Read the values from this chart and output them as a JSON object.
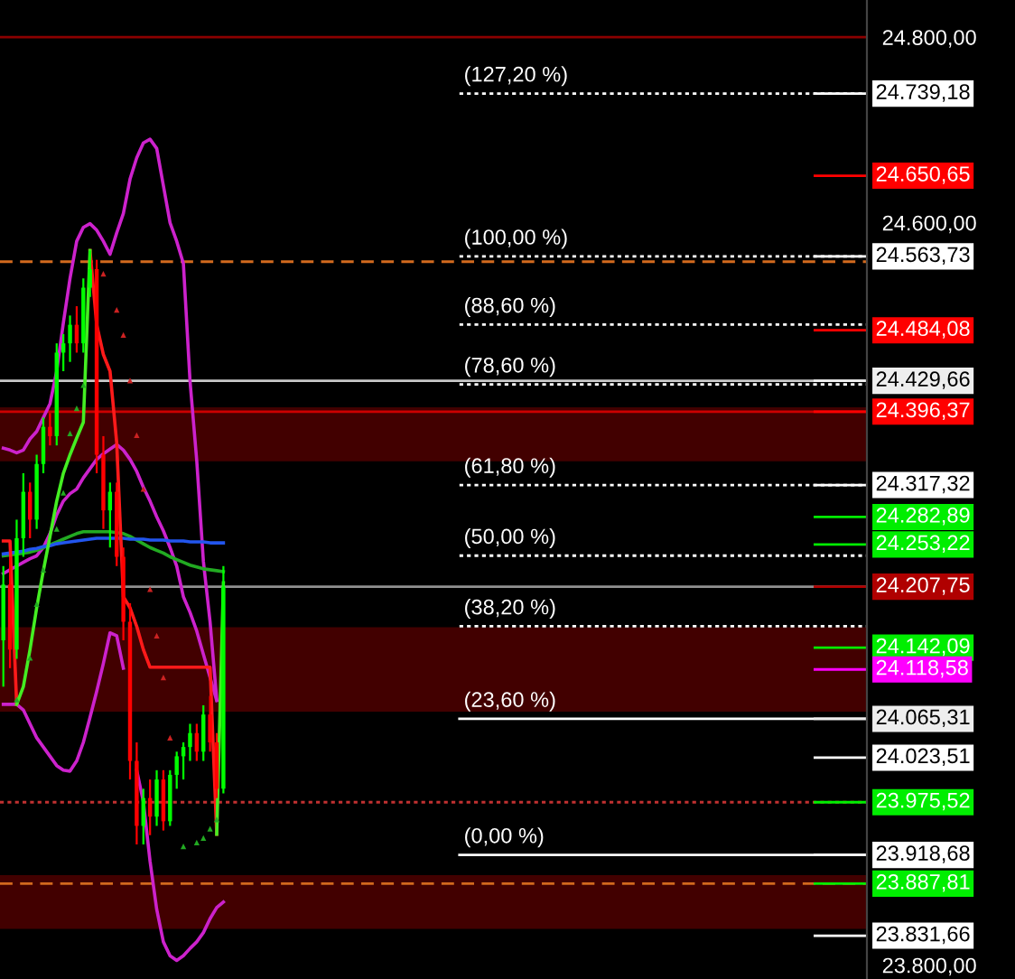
{
  "chart_data": {
    "type": "candlestick",
    "categories": [
      null,
      null,
      null,
      null,
      null,
      null,
      null,
      null,
      null,
      null,
      null,
      null,
      null,
      null,
      null,
      null,
      null,
      null,
      null,
      null,
      null,
      null,
      null,
      null,
      null,
      null,
      null,
      null,
      null,
      null,
      null,
      null,
      null,
      null,
      null,
      null,
      null,
      null,
      null,
      null,
      null,
      null,
      null,
      null,
      null,
      null,
      null,
      null,
      null,
      null,
      null,
      null,
      null,
      null,
      null,
      null,
      null,
      null,
      null,
      null,
      null,
      null,
      null,
      null,
      null,
      null,
      null,
      null,
      null,
      null,
      null,
      null,
      null,
      null,
      null,
      null,
      null,
      null,
      null,
      null,
      null,
      null,
      null,
      null,
      null,
      null,
      null,
      null,
      null,
      null,
      null,
      null,
      null,
      null,
      null,
      null,
      null,
      null,
      null,
      null,
      null,
      null,
      null,
      null,
      null,
      null,
      null,
      null,
      null,
      null,
      null,
      null,
      null,
      null,
      null,
      null,
      null,
      null,
      null,
      null,
      null,
      null,
      null,
      null,
      null,
      null,
      null,
      null,
      null,
      null
    ],
    "ohlc": [
      [
        24150,
        24230,
        24100,
        24210
      ],
      [
        24210,
        24240,
        24120,
        24140
      ],
      [
        24140,
        24280,
        24130,
        24260
      ],
      [
        24260,
        24330,
        24240,
        24310
      ],
      [
        24310,
        24320,
        24260,
        24280
      ],
      [
        24280,
        24350,
        24270,
        24340
      ],
      [
        24340,
        24390,
        24330,
        24380
      ],
      [
        24380,
        24395,
        24360,
        24370
      ],
      [
        24370,
        24470,
        24360,
        24460
      ],
      [
        24460,
        24480,
        24440,
        24470
      ],
      [
        24470,
        24500,
        24450,
        24490
      ],
      [
        24490,
        24510,
        24460,
        24470
      ],
      [
        24470,
        24540,
        24460,
        24530
      ],
      [
        24530,
        24570,
        24520,
        24550
      ],
      [
        24550,
        24560,
        24330,
        24350
      ],
      [
        24350,
        24370,
        24270,
        24290
      ],
      [
        24290,
        24320,
        24250,
        24310
      ],
      [
        24310,
        24320,
        24230,
        24240
      ],
      [
        24240,
        24250,
        24150,
        24170
      ],
      [
        24170,
        24190,
        24000,
        24020
      ],
      [
        24020,
        24040,
        23930,
        23950
      ],
      [
        23950,
        23990,
        23930,
        23980
      ],
      [
        23980,
        24000,
        23940,
        23960
      ],
      [
        23960,
        24010,
        23950,
        24000
      ],
      [
        24000,
        24010,
        23945,
        23955
      ],
      [
        23955,
        24010,
        23950,
        24005
      ],
      [
        24005,
        24030,
        23990,
        24025
      ],
      [
        24025,
        24040,
        24000,
        24035
      ],
      [
        24035,
        24060,
        24020,
        24050
      ],
      [
        24050,
        24060,
        24020,
        24030
      ],
      [
        24030,
        24080,
        24020,
        24070
      ],
      [
        24070,
        24090,
        24030,
        24040
      ],
      [
        24040,
        24050,
        23980,
        23990
      ],
      [
        23990,
        24230,
        23985,
        24207.75
      ],
      null,
      null,
      null,
      null,
      null,
      null,
      null,
      null,
      null,
      null,
      null,
      null,
      null,
      null,
      null,
      null,
      null,
      null,
      null,
      null,
      null,
      null,
      null,
      null,
      null,
      null,
      null,
      null,
      null,
      null,
      null,
      null,
      null,
      null,
      null,
      null,
      null,
      null,
      null,
      null,
      null,
      null,
      null,
      null,
      null,
      null,
      null,
      null,
      null,
      null,
      null,
      null,
      null,
      null,
      null,
      null,
      null,
      null,
      null,
      null,
      null,
      null,
      null,
      null,
      null,
      null,
      null,
      null,
      null,
      null,
      null,
      null,
      null,
      null,
      null,
      null,
      null,
      null,
      null,
      null,
      null,
      null,
      null,
      null,
      null,
      null,
      null,
      null,
      null,
      null,
      null,
      null,
      null,
      null,
      null,
      null
    ],
    "colors": [
      "#00ff00",
      "#ff0000",
      "#00ff00",
      "#00ff00",
      "#ff0000",
      "#00ff00",
      "#00ff00",
      "#ff0000",
      "#00ff00",
      "#00ff00",
      "#00ff00",
      "#ff0000",
      "#00ff00",
      "#00ff00",
      "#ff0000",
      "#ff0000",
      "#00ff00",
      "#ff0000",
      "#ff0000",
      "#ff0000",
      "#ff0000",
      "#00ff00",
      "#ff0000",
      "#00ff00",
      "#ff0000",
      "#00ff00",
      "#00ff00",
      "#00ff00",
      "#00ff00",
      "#ff0000",
      "#00ff00",
      "#ff0000",
      "#ff0000",
      "#00ff00",
      null,
      null,
      null,
      null,
      null,
      null,
      null,
      null,
      null,
      null,
      null,
      null,
      null,
      null,
      null,
      null,
      null,
      null,
      null,
      null,
      null,
      null,
      null,
      null,
      null,
      null,
      null,
      null,
      null,
      null,
      null,
      null,
      null,
      null,
      null,
      null,
      null,
      null,
      null,
      null,
      null,
      null,
      null,
      null,
      null,
      null,
      null,
      null,
      null,
      null,
      null,
      null,
      null,
      null,
      null,
      null,
      null,
      null,
      null,
      null,
      null,
      null,
      null,
      null,
      null,
      null,
      null,
      null,
      null,
      null,
      null,
      null,
      null,
      null,
      null,
      null,
      null,
      null,
      null,
      null,
      null,
      null,
      null,
      null,
      null,
      null,
      null,
      null,
      null,
      null,
      null,
      null,
      null,
      null,
      null,
      null
    ],
    "ylim": [
      23785,
      24840
    ],
    "yticks": [
      {
        "value": 24800,
        "label": "24.800,00"
      },
      {
        "value": 24600,
        "label": "24.600,00"
      },
      {
        "value": 23800,
        "label": "23.800,00"
      }
    ],
    "tick_labels": "y",
    "grid": false,
    "series": [
      {
        "type": "line",
        "color": "#cc22cc",
        "values": [
          24357,
          24355,
          24352,
          24355,
          24367,
          24375,
          24390,
          24405,
          24440,
          24492,
          24540,
          24580,
          24595,
          24599,
          24592,
          24580,
          24566,
          24589,
          24610,
          24647,
          24670,
          24686,
          24690,
          24680,
          24640,
          24600,
          24580,
          24556,
          24429,
          24344,
          24235,
          24170,
          24086,
          null,
          null,
          null,
          null,
          null,
          null,
          null,
          null,
          null,
          null,
          null,
          null,
          null,
          null,
          null,
          null,
          null,
          null,
          null,
          null,
          null,
          null,
          null,
          null,
          null,
          null,
          null,
          null,
          null,
          null,
          null,
          null,
          null,
          null,
          null,
          null,
          null,
          null,
          null,
          null,
          null,
          null,
          null,
          null,
          null,
          null,
          null,
          null,
          null,
          null,
          null,
          null,
          null,
          null,
          null,
          null,
          null,
          null,
          null,
          null,
          null,
          null,
          null,
          null,
          null,
          null,
          null,
          null,
          null,
          null,
          null,
          null,
          null,
          null,
          null,
          null,
          null,
          null,
          null,
          null,
          null,
          null,
          null,
          null,
          null,
          null,
          null,
          null,
          null,
          null,
          null,
          null,
          null,
          null,
          null,
          null,
          null
        ]
      },
      {
        "type": "line",
        "color": "#cc22cc",
        "values": [
          24222,
          24226,
          24230,
          24234,
          24238,
          24241,
          24250,
          24265,
          24285,
          24300,
          24308,
          24313,
          24325,
          24335,
          24345,
          24351,
          24356,
          24361,
          24355,
          24345,
          24332,
          24315,
          24300,
          24283,
          24268,
          24250,
          24230,
          24197,
          24180,
          24160,
          24135,
          24110,
          24085,
          null,
          null,
          null,
          null,
          null,
          null,
          null,
          null,
          null,
          null,
          null,
          null,
          null,
          null,
          null,
          null,
          null,
          null,
          null,
          null,
          null,
          null,
          null,
          null,
          null,
          null,
          null,
          null,
          null,
          null,
          null,
          null,
          null,
          null,
          null,
          null,
          null,
          null,
          null,
          null,
          null,
          null,
          null,
          null,
          null,
          null,
          null,
          null,
          null,
          null,
          null,
          null,
          null,
          null,
          null,
          null,
          null,
          null,
          null,
          null,
          null,
          null,
          null,
          null,
          null,
          null,
          null,
          null,
          null,
          null,
          null,
          null,
          null,
          null,
          null,
          null,
          null,
          null,
          null,
          null,
          null,
          null,
          null,
          null,
          null,
          null,
          null,
          null,
          null,
          null,
          null,
          null,
          null,
          null,
          null,
          null,
          null
        ]
      },
      {
        "type": "line",
        "color": "#cc22cc",
        "values": [
          24081,
          24081,
          24081,
          24075,
          24060,
          24045,
          24035,
          24025,
          24015,
          24010,
          24009,
          24020,
          24040,
          24067,
          24095,
          24125,
          24158,
          24155,
          24120,
          null,
          24010,
          23976,
          23912,
          23860,
          23825,
          23810,
          23805,
          23810,
          23818,
          23825,
          23835,
          23850,
          23862,
          23868,
          null,
          null,
          null,
          null,
          null,
          null,
          null,
          null,
          null,
          null,
          null,
          null,
          null,
          null,
          null,
          null,
          null,
          null,
          null,
          null,
          null,
          null,
          null,
          null,
          null,
          null,
          null,
          null,
          null,
          null,
          null,
          null,
          null,
          null,
          null,
          null,
          null,
          null,
          null,
          null,
          null,
          null,
          null,
          null,
          null,
          null,
          null,
          null,
          null,
          null,
          null,
          null,
          null,
          null,
          null,
          null,
          null,
          null,
          null,
          null,
          null,
          null,
          null,
          null,
          null,
          null,
          null,
          null,
          null,
          null,
          null,
          null,
          null,
          null,
          null,
          null,
          null,
          null,
          null,
          null,
          null,
          null,
          null,
          null,
          null,
          null,
          null,
          null,
          null,
          null,
          null,
          null,
          null,
          null,
          null,
          null
        ]
      },
      {
        "type": "line",
        "color": "#22aa22",
        "values": [
          24241,
          24242,
          24243,
          24244,
          24245,
          24247,
          24250,
          24253,
          24256,
          24259,
          24262,
          24265,
          24267,
          24267,
          24267,
          24267,
          24267,
          24266,
          24265,
          24262,
          24258,
          24254,
          24250,
          24247,
          24244,
          24240,
          24237,
          24234,
          24231,
          24229,
          24227,
          24226,
          24225,
          24224,
          null,
          null,
          null,
          null,
          null,
          null,
          null,
          null,
          null,
          null,
          null,
          null,
          null,
          null,
          null,
          null,
          null,
          null,
          null,
          null,
          null,
          null,
          null,
          null,
          null,
          null,
          null,
          null,
          null,
          null,
          null,
          null,
          null,
          null,
          null,
          null,
          null,
          null,
          null,
          null,
          null,
          null,
          null,
          null,
          null,
          null,
          null,
          null,
          null,
          null,
          null,
          null,
          null,
          null,
          null,
          null,
          null,
          null,
          null,
          null,
          null,
          null,
          null,
          null,
          null,
          null,
          null,
          null,
          null,
          null,
          null,
          null,
          null,
          null,
          null,
          null,
          null,
          null,
          null,
          null,
          null,
          null,
          null,
          null,
          null,
          null,
          null,
          null,
          null,
          null,
          null,
          null,
          null,
          null,
          null,
          null
        ]
      },
      {
        "type": "line",
        "color": "#2255ee",
        "values": [
          24243,
          24244,
          24245,
          24246,
          24248,
          24249,
          24251,
          24252,
          24254,
          24255,
          24256,
          24257,
          24258,
          24259,
          24260,
          24260,
          24260,
          24260,
          24260,
          24259,
          24259,
          24259,
          24258,
          24258,
          24258,
          24257,
          24257,
          24257,
          24256,
          24256,
          24256,
          24255,
          24255,
          24255,
          null,
          null,
          null,
          null,
          null,
          null,
          null,
          null,
          null,
          null,
          null,
          null,
          null,
          null,
          null,
          null,
          null,
          null,
          null,
          null,
          null,
          null,
          null,
          null,
          null,
          null,
          null,
          null,
          null,
          null,
          null,
          null,
          null,
          null,
          null,
          null,
          null,
          null,
          null,
          null,
          null,
          null,
          null,
          null,
          null,
          null,
          null,
          null,
          null,
          null,
          null,
          null,
          null,
          null,
          null,
          null,
          null,
          null,
          null,
          null,
          null,
          null,
          null,
          null,
          null,
          null,
          null,
          null,
          null,
          null,
          null,
          null,
          null,
          null,
          null,
          null,
          null,
          null,
          null,
          null,
          null,
          null,
          null,
          null,
          null,
          null,
          null,
          null,
          null,
          null,
          null,
          null,
          null,
          null,
          null,
          null
        ]
      },
      {
        "type": "line",
        "color": "#ff1a1a",
        "values": [
          24257,
          24257,
          24081,
          null,
          null,
          null,
          null,
          null,
          null,
          null,
          null,
          null,
          null,
          24570,
          24490,
          24458,
          24440,
          24363,
          24197,
          24185,
          24165,
          24140,
          24121,
          24121,
          24121,
          24121,
          24121,
          24121,
          24121,
          24121,
          24121,
          24121,
          23941,
          null,
          null,
          null,
          null,
          null,
          null,
          null,
          null,
          null,
          null,
          null,
          null,
          null,
          null,
          null,
          null,
          null,
          null,
          null,
          null,
          null,
          null,
          null,
          null,
          null,
          null,
          null,
          null,
          null,
          null,
          null,
          null,
          null,
          null,
          null,
          null,
          null,
          null,
          null,
          null,
          null,
          null,
          null,
          null,
          null,
          null,
          null,
          null,
          null,
          null,
          null,
          null,
          null,
          null,
          null,
          null,
          null,
          null,
          null,
          null,
          null,
          null,
          null,
          null,
          null,
          null,
          null,
          null,
          null,
          null,
          null,
          null,
          null,
          null,
          null,
          null,
          null,
          null,
          null,
          null,
          null,
          null,
          null,
          null,
          null,
          null,
          null,
          null,
          null,
          null,
          null,
          null,
          null,
          null,
          null,
          null,
          null
        ]
      },
      {
        "type": "line",
        "color": "#44ee22",
        "values": [
          null,
          null,
          24081,
          24100,
          24140,
          24185,
          24225,
          24262,
          24300,
          24330,
          24350,
          24368,
          24385,
          24570,
          null,
          null,
          null,
          null,
          null,
          null,
          null,
          null,
          null,
          null,
          null,
          null,
          null,
          null,
          null,
          null,
          null,
          null,
          23941,
          24212,
          null,
          null,
          null,
          null,
          null,
          null,
          null,
          null,
          null,
          null,
          null,
          null,
          null,
          null,
          null,
          null,
          null,
          null,
          null,
          null,
          null,
          null,
          null,
          null,
          null,
          null,
          null,
          null,
          null,
          null,
          null,
          null,
          null,
          null,
          null,
          null,
          null,
          null,
          null,
          null,
          null,
          null,
          null,
          null,
          null,
          null,
          null,
          null,
          null,
          null,
          null,
          null,
          null,
          null,
          null,
          null,
          null,
          null,
          null,
          null,
          null,
          null,
          null,
          null,
          null,
          null,
          null,
          null,
          null,
          null,
          null,
          null,
          null,
          null,
          null,
          null,
          null,
          null,
          null,
          null,
          null,
          null,
          null,
          null,
          null,
          null,
          null,
          null,
          null,
          null,
          null,
          null,
          null,
          null,
          null,
          null
        ]
      },
      {
        "type": "scatter",
        "color": "#cc2222",
        "marker": "triangle",
        "values": [
          null,
          null,
          null,
          null,
          null,
          null,
          null,
          null,
          null,
          null,
          null,
          null,
          null,
          null,
          null,
          24545,
          null,
          24506,
          24479,
          24430,
          24371,
          24313,
          24205,
          24155,
          24110,
          24045,
          null,
          null,
          null,
          null,
          null,
          null,
          null,
          null,
          null,
          null,
          null,
          null,
          null,
          null,
          null,
          null,
          null,
          null,
          null,
          null,
          null,
          null,
          null,
          null,
          null,
          null,
          null,
          null,
          null,
          null,
          null,
          null,
          null,
          null,
          null,
          null,
          null,
          null,
          null,
          null,
          null,
          null,
          null,
          null,
          null,
          null,
          null,
          null,
          null,
          null,
          null,
          null,
          null,
          null,
          null,
          null,
          null,
          null,
          null,
          null,
          null,
          null,
          null,
          null,
          null,
          null,
          null,
          null,
          null,
          null,
          null,
          null,
          null,
          null,
          null,
          null,
          null,
          null,
          null,
          null,
          null,
          null,
          null,
          null,
          null,
          null,
          null,
          null,
          null,
          null,
          null,
          null,
          null,
          null,
          null,
          null,
          null,
          null,
          null,
          null,
          null,
          null,
          null,
          null
        ]
      },
      {
        "type": "scatter",
        "color": "#22aa22",
        "marker": "triangle",
        "values": [
          null,
          null,
          24086,
          null,
          24131,
          24189,
          24226,
          null,
          24270,
          24309,
          24373,
          24400,
          24425,
          null,
          null,
          null,
          null,
          null,
          null,
          null,
          null,
          null,
          null,
          null,
          null,
          null,
          null,
          23928,
          null,
          23932,
          23937,
          23947,
          23957,
          null,
          null,
          null,
          null,
          null,
          null,
          null,
          null,
          null,
          null,
          null,
          null,
          null,
          null,
          null,
          null,
          null,
          null,
          null,
          null,
          null,
          null,
          null,
          null,
          null,
          null,
          null,
          null,
          null,
          null,
          null,
          null,
          null,
          null,
          null,
          null,
          null,
          null,
          null,
          null,
          null,
          null,
          null,
          null,
          null,
          null,
          null,
          null,
          null,
          null,
          null,
          null,
          null,
          null,
          null,
          null,
          null,
          null,
          null,
          null,
          null,
          null,
          null,
          null,
          null,
          null,
          null,
          null,
          null,
          null,
          null,
          null,
          null,
          null,
          null,
          null,
          null,
          null,
          null,
          null,
          null,
          null,
          null,
          null,
          null,
          null,
          null,
          null,
          null,
          null,
          null,
          null,
          null,
          null,
          null,
          null,
          null
        ]
      }
    ],
    "bands": [
      {
        "axis": "y",
        "from": 24343,
        "to": 24401,
        "color": "#420000"
      },
      {
        "axis": "y",
        "from": 24073,
        "to": 24164,
        "color": "#420000"
      },
      {
        "axis": "y",
        "from": 23839,
        "to": 23897,
        "color": "#420000"
      }
    ],
    "annotations": [
      "(127,20 %)",
      "(100,00 %)",
      "(88,60 %)",
      "(78,60 %)",
      "(61,80 %)",
      "(50,00 %)",
      "(38,20 %)",
      "(23,60 %)",
      "(0,00 %)"
    ],
    "ref_lines": [
      {
        "axis": "y",
        "value": 24739.18,
        "color": "#ffffff",
        "line_style": "dotted"
      },
      {
        "axis": "y",
        "value": 24563.73,
        "color": "#ffffff",
        "line_style": "dotted"
      },
      {
        "axis": "y",
        "value": 24490.2,
        "color": "#ffffff",
        "line_style": "dotted"
      },
      {
        "axis": "y",
        "value": 24425.7,
        "color": "#ffffff",
        "line_style": "dotted"
      },
      {
        "axis": "y",
        "value": 24317.32,
        "color": "#ffffff",
        "line_style": "dotted"
      },
      {
        "axis": "y",
        "value": 24241.2,
        "color": "#ffffff",
        "line_style": "dotted"
      },
      {
        "axis": "y",
        "value": 24165.09,
        "color": "#ffffff",
        "line_style": "dotted"
      },
      {
        "axis": "y",
        "value": 24065.31,
        "color": "#ffffff",
        "line_style": "solid"
      },
      {
        "axis": "y",
        "value": 23918.68,
        "color": "#ffffff",
        "line_style": "solid"
      },
      {
        "axis": "y",
        "value": 24800,
        "color": "#8b0000",
        "line_style": "solid"
      },
      {
        "axis": "y",
        "value": 24558,
        "color": "#d2691e",
        "line_style": "dashed"
      },
      {
        "axis": "y",
        "value": 24429.66,
        "color": "#c8c8c8",
        "line_style": "solid"
      },
      {
        "axis": "y",
        "value": 24396.37,
        "color": "#cc0000",
        "line_style": "solid"
      },
      {
        "axis": "y",
        "value": 24207.75,
        "color": "#909090",
        "line_style": "solid"
      },
      {
        "axis": "y",
        "value": 23975.52,
        "color": "#c03030",
        "line_style": "dotted"
      },
      {
        "axis": "y",
        "value": 23887.81,
        "color": "#d2691e",
        "line_style": "dashed"
      },
      {
        "axis": "y",
        "value": 24739.18,
        "label": "24.739,18",
        "color": "#ffffff"
      },
      {
        "axis": "y",
        "value": 24650.65,
        "label": "24.650,65",
        "color": "#ff0000"
      },
      {
        "axis": "y",
        "value": 24563.73,
        "label": "24.563,73",
        "color": "#ffffff"
      },
      {
        "axis": "y",
        "value": 24484.08,
        "label": "24.484,08",
        "color": "#ff0000"
      },
      {
        "axis": "y",
        "value": 24429.66,
        "label": "24.429,66",
        "color": "#eeeeee"
      },
      {
        "axis": "y",
        "value": 24396.37,
        "label": "24.396,37",
        "color": "#ff0000"
      },
      {
        "axis": "y",
        "value": 24317.32,
        "label": "24.317,32",
        "color": "#ffffff"
      },
      {
        "axis": "y",
        "value": 24282.89,
        "label": "24.282,89",
        "color": "#00ee00"
      },
      {
        "axis": "y",
        "value": 24253.22,
        "label": "24.253,22",
        "color": "#00ee00"
      },
      {
        "axis": "y",
        "value": 24207.75,
        "label": "24.207,75",
        "color": "#b00000"
      },
      {
        "axis": "y",
        "value": 24142.09,
        "label": "24.142,09",
        "color": "#00ee00"
      },
      {
        "axis": "y",
        "value": 24118.58,
        "label": "24.118,58",
        "color": "#ff00ff"
      },
      {
        "axis": "y",
        "value": 24065.31,
        "label": "24.065,31",
        "color": "#eeeeee"
      },
      {
        "axis": "y",
        "value": 24023.51,
        "label": "24.023,51",
        "color": "#ffffff"
      },
      {
        "axis": "y",
        "value": 23975.52,
        "label": "23.975,52",
        "color": "#00ee00"
      },
      {
        "axis": "y",
        "value": 23918.68,
        "label": "23.918,68",
        "color": "#ffffff"
      },
      {
        "axis": "y",
        "value": 23887.81,
        "label": "23.887,81",
        "color": "#00ee00"
      },
      {
        "axis": "y",
        "value": 23831.66,
        "label": "23.831,66",
        "color": "#ffffff"
      }
    ]
  }
}
